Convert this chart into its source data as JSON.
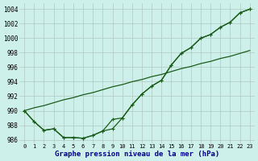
{
  "title": "Graphe pression niveau de la mer (hPa)",
  "background_color": "#cef0ea",
  "grid_color": "#b0c8c0",
  "line_color": "#1a5c1a",
  "xlabel_color": "#00008b",
  "xlim_min": -0.5,
  "xlim_max": 23.5,
  "ylim_min": 985.5,
  "ylim_max": 1004.8,
  "yticks": [
    986,
    988,
    990,
    992,
    994,
    996,
    998,
    1000,
    1002,
    1004
  ],
  "xticks": [
    0,
    1,
    2,
    3,
    4,
    5,
    6,
    7,
    8,
    9,
    10,
    11,
    12,
    13,
    14,
    15,
    16,
    17,
    18,
    19,
    20,
    21,
    22,
    23
  ],
  "hours": [
    0,
    1,
    2,
    3,
    4,
    5,
    6,
    7,
    8,
    9,
    10,
    11,
    12,
    13,
    14,
    15,
    16,
    17,
    18,
    19,
    20,
    21,
    22,
    23
  ],
  "line_straight": [
    990.0,
    990.4,
    990.7,
    991.1,
    991.5,
    991.8,
    992.2,
    992.5,
    992.9,
    993.3,
    993.6,
    994.0,
    994.3,
    994.7,
    995.0,
    995.4,
    995.8,
    996.1,
    996.5,
    996.8,
    997.2,
    997.5,
    997.9,
    998.3
  ],
  "line_measured1": [
    990.0,
    988.5,
    987.3,
    987.5,
    986.3,
    986.3,
    986.2,
    986.6,
    987.2,
    988.8,
    989.0,
    990.8,
    992.3,
    993.4,
    994.2,
    996.3,
    997.9,
    998.7,
    1000.0,
    1000.5,
    1001.5,
    1002.2,
    1003.5,
    1004.0
  ],
  "line_measured2": [
    990.0,
    988.5,
    987.3,
    987.5,
    986.3,
    986.3,
    986.2,
    986.6,
    987.2,
    987.5,
    989.0,
    990.8,
    992.3,
    993.4,
    994.2,
    996.3,
    997.9,
    998.7,
    1000.0,
    1000.5,
    1001.5,
    1002.2,
    1003.5,
    1004.0
  ]
}
